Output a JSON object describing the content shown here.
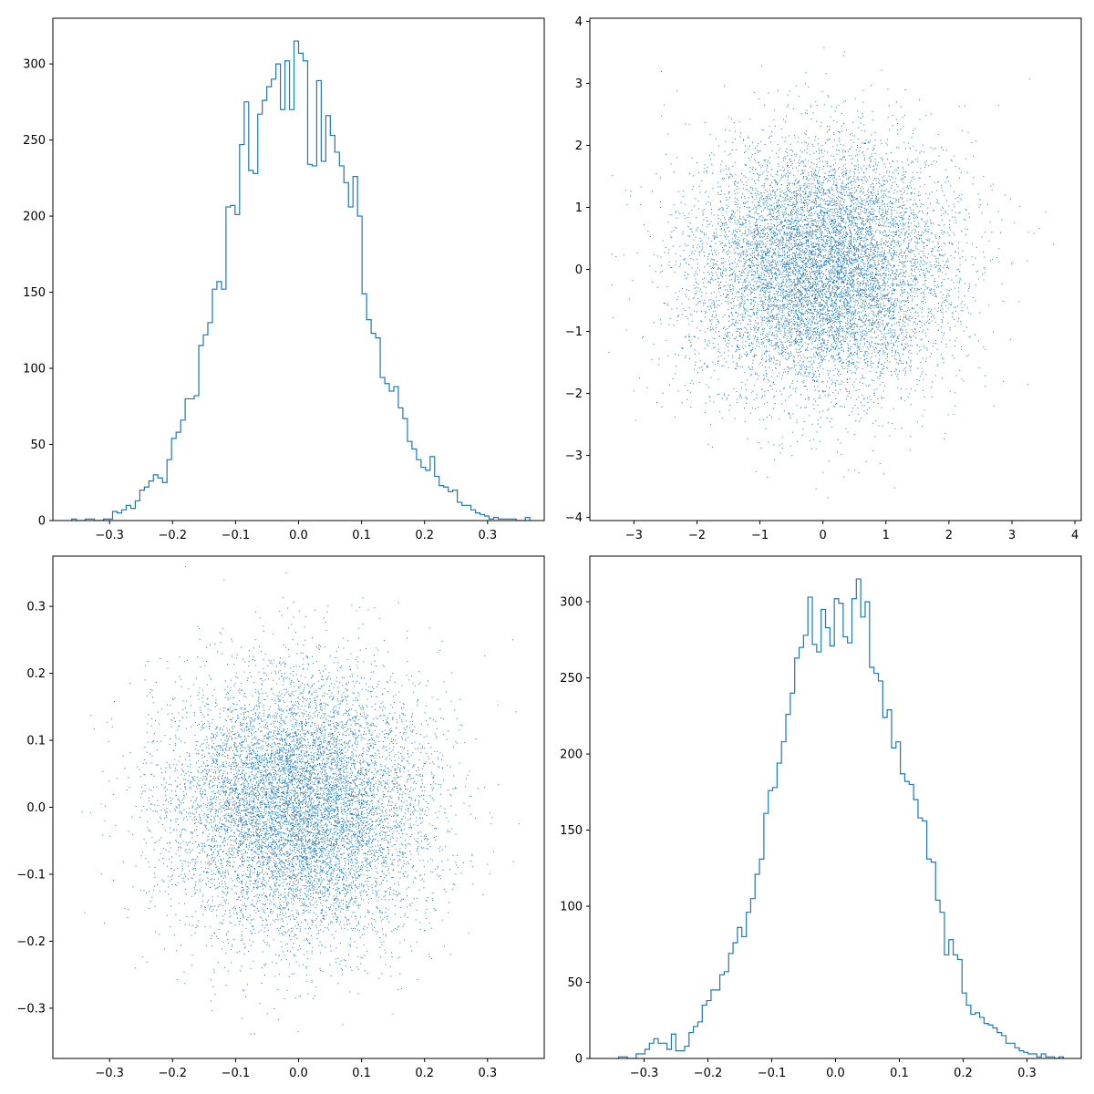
{
  "colors": {
    "series": "#1f77b4",
    "axes": "#000000",
    "background": "#ffffff"
  },
  "chart_data": [
    {
      "type": "histogram",
      "position": "top-left",
      "title": "",
      "xlabel": "",
      "ylabel": "",
      "grid": false,
      "xlim": [
        -0.39,
        0.39
      ],
      "ylim": [
        0,
        330
      ],
      "xticks": [
        -0.3,
        -0.2,
        -0.1,
        0.0,
        0.1,
        0.2,
        0.3
      ],
      "xtick_labels": [
        "−0.3",
        "−0.2",
        "−0.1",
        "0.0",
        "0.1",
        "0.2",
        "0.3"
      ],
      "yticks": [
        0,
        50,
        100,
        150,
        200,
        250,
        300
      ],
      "ytick_labels": [
        "0",
        "50",
        "100",
        "150",
        "200",
        "250",
        "300"
      ],
      "bin_start": -0.36,
      "bin_width": 0.0072,
      "counts": [
        1,
        0,
        0,
        1,
        1,
        0,
        0,
        1,
        1,
        6,
        5,
        7,
        10,
        8,
        13,
        20,
        22,
        26,
        30,
        28,
        25,
        40,
        54,
        58,
        66,
        80,
        80,
        82,
        115,
        122,
        130,
        152,
        157,
        152,
        206,
        207,
        201,
        247,
        275,
        230,
        228,
        267,
        276,
        285,
        290,
        300,
        270,
        302,
        270,
        315,
        307,
        302,
        234,
        233,
        289,
        236,
        266,
        253,
        242,
        233,
        222,
        206,
        226,
        200,
        149,
        132,
        123,
        120,
        94,
        90,
        85,
        88,
        74,
        67,
        52,
        47,
        40,
        35,
        33,
        42,
        29,
        23,
        22,
        19,
        20,
        12,
        10,
        10,
        7,
        5,
        4,
        3,
        1,
        2,
        1,
        1,
        1,
        1,
        0,
        0,
        2
      ]
    },
    {
      "type": "scatter",
      "position": "top-right",
      "title": "",
      "xlabel": "",
      "ylabel": "",
      "grid": false,
      "xlim": [
        -3.7,
        4.1
      ],
      "ylim": [
        -4.05,
        4.05
      ],
      "xticks": [
        -3,
        -2,
        -1,
        0,
        1,
        2,
        3,
        4
      ],
      "xtick_labels": [
        "−3",
        "−2",
        "−1",
        "0",
        "1",
        "2",
        "3",
        "4"
      ],
      "yticks": [
        -4,
        -3,
        -2,
        -1,
        0,
        1,
        2,
        3,
        4
      ],
      "ytick_labels": [
        "−4",
        "−3",
        "−2",
        "−1",
        "0",
        "1",
        "2",
        "3",
        "4"
      ],
      "distribution": {
        "kind": "normal",
        "n_points": 10000,
        "mean_x": 0,
        "std_x": 1,
        "mean_y": 0,
        "std_y": 1,
        "x_range": [
          -3.4,
          3.9
        ],
        "y_range": [
          -3.7,
          3.7
        ]
      }
    },
    {
      "type": "scatter",
      "position": "bottom-left",
      "title": "",
      "xlabel": "",
      "ylabel": "",
      "grid": false,
      "xlim": [
        -0.39,
        0.39
      ],
      "ylim": [
        -0.375,
        0.375
      ],
      "xticks": [
        -0.3,
        -0.2,
        -0.1,
        0.0,
        0.1,
        0.2,
        0.3
      ],
      "xtick_labels": [
        "−0.3",
        "−0.2",
        "−0.1",
        "0.0",
        "0.1",
        "0.2",
        "0.3"
      ],
      "yticks": [
        -0.3,
        -0.2,
        -0.1,
        0.0,
        0.1,
        0.2,
        0.3
      ],
      "ytick_labels": [
        "−0.3",
        "−0.2",
        "−0.1",
        "0.0",
        "0.1",
        "0.2",
        "0.3"
      ],
      "distribution": {
        "kind": "normal",
        "n_points": 10000,
        "mean_x": 0,
        "std_x": 0.1,
        "mean_y": 0,
        "std_y": 0.1,
        "x_range": [
          -0.36,
          0.36
        ],
        "y_range": [
          -0.34,
          0.36
        ]
      }
    },
    {
      "type": "histogram",
      "position": "bottom-right",
      "title": "",
      "xlabel": "",
      "ylabel": "",
      "grid": false,
      "xlim": [
        -0.385,
        0.385
      ],
      "ylim": [
        0,
        330
      ],
      "xticks": [
        -0.3,
        -0.2,
        -0.1,
        0.0,
        0.1,
        0.2,
        0.3
      ],
      "xtick_labels": [
        "−0.3",
        "−0.2",
        "−0.1",
        "0.0",
        "0.1",
        "0.2",
        "0.3"
      ],
      "yticks": [
        0,
        50,
        100,
        150,
        200,
        250,
        300
      ],
      "ytick_labels": [
        "0",
        "50",
        "100",
        "150",
        "200",
        "250",
        "300"
      ],
      "bin_start": -0.34,
      "bin_width": 0.0069,
      "counts": [
        1,
        1,
        0,
        0,
        3,
        3,
        6,
        10,
        13,
        10,
        10,
        6,
        16,
        5,
        5,
        8,
        17,
        21,
        24,
        35,
        38,
        45,
        45,
        55,
        57,
        69,
        76,
        86,
        80,
        96,
        105,
        121,
        131,
        161,
        176,
        178,
        194,
        208,
        226,
        240,
        263,
        270,
        278,
        303,
        272,
        267,
        295,
        283,
        271,
        302,
        299,
        277,
        273,
        302,
        315,
        290,
        300,
        257,
        253,
        248,
        224,
        229,
        204,
        208,
        187,
        182,
        180,
        170,
        158,
        156,
        131,
        129,
        104,
        96,
        68,
        78,
        68,
        65,
        43,
        35,
        29,
        30,
        27,
        23,
        22,
        20,
        17,
        15,
        10,
        10,
        7,
        5,
        4,
        3,
        3,
        1,
        3,
        1,
        1,
        0,
        1
      ]
    }
  ]
}
